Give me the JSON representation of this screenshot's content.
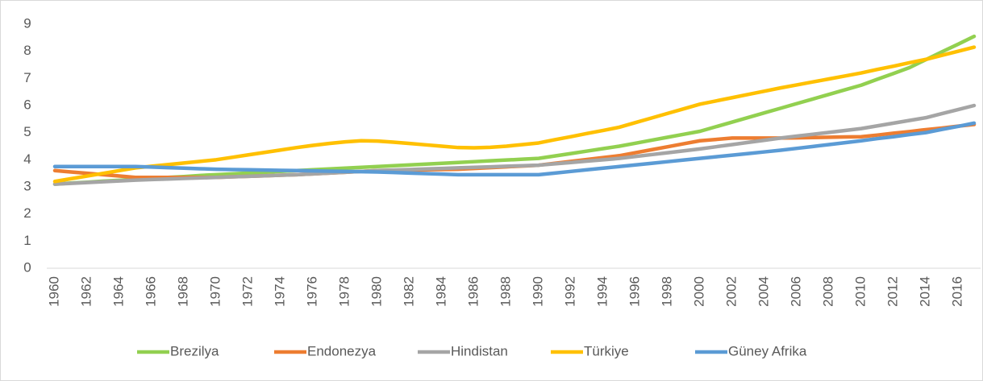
{
  "chart_data": {
    "type": "line",
    "categories": [
      "1960",
      null,
      "1962",
      null,
      "1964",
      null,
      "1966",
      null,
      "1968",
      null,
      "1970",
      null,
      "1972",
      null,
      "1974",
      null,
      "1976",
      null,
      "1978",
      null,
      "1980",
      null,
      "1982",
      null,
      "1984",
      null,
      "1986",
      null,
      "1988",
      null,
      "1990",
      null,
      "1992",
      null,
      "1994",
      null,
      "1996",
      null,
      "1998",
      null,
      "2000",
      null,
      "2002",
      null,
      "2004",
      null,
      "2006",
      null,
      "2008",
      null,
      "2010",
      null,
      "2012",
      null,
      "2014",
      null,
      "2016",
      null
    ],
    "series": [
      {
        "name": "Brezilya",
        "color": "#92d050",
        "values": [
          3.1,
          3.14,
          3.17,
          3.21,
          3.24,
          3.28,
          3.31,
          3.35,
          3.38,
          3.42,
          3.45,
          3.48,
          3.51,
          3.54,
          3.57,
          3.6,
          3.63,
          3.66,
          3.69,
          3.72,
          3.75,
          3.78,
          3.81,
          3.84,
          3.87,
          3.9,
          3.93,
          3.96,
          3.99,
          4.02,
          4.05,
          4.14,
          4.23,
          4.32,
          4.41,
          4.5,
          4.61,
          4.72,
          4.83,
          4.94,
          5.05,
          5.22,
          5.39,
          5.56,
          5.73,
          5.9,
          6.07,
          6.24,
          6.41,
          6.58,
          6.75,
          6.97,
          7.18,
          7.4,
          7.69,
          7.98,
          8.26,
          8.55
        ]
      },
      {
        "name": "Endonezya",
        "color": "#ed7d31",
        "values": [
          3.6,
          3.55,
          3.5,
          3.45,
          3.4,
          3.35,
          3.35,
          3.35,
          3.35,
          3.35,
          3.35,
          3.37,
          3.39,
          3.41,
          3.43,
          3.45,
          3.48,
          3.51,
          3.54,
          3.57,
          3.6,
          3.61,
          3.62,
          3.63,
          3.64,
          3.65,
          3.68,
          3.71,
          3.74,
          3.77,
          3.8,
          3.87,
          3.94,
          4.01,
          4.08,
          4.15,
          4.26,
          4.37,
          4.48,
          4.59,
          4.7,
          4.75,
          4.8,
          4.8,
          4.8,
          4.8,
          4.81,
          4.82,
          4.83,
          4.84,
          4.85,
          4.91,
          4.98,
          5.04,
          5.11,
          5.17,
          5.24,
          5.3
        ]
      },
      {
        "name": "Hindistan",
        "color": "#a5a5a5",
        "values": [
          3.1,
          3.13,
          3.16,
          3.19,
          3.22,
          3.25,
          3.27,
          3.29,
          3.31,
          3.33,
          3.35,
          3.37,
          3.39,
          3.41,
          3.43,
          3.45,
          3.48,
          3.51,
          3.54,
          3.57,
          3.6,
          3.62,
          3.64,
          3.66,
          3.68,
          3.7,
          3.72,
          3.74,
          3.76,
          3.78,
          3.8,
          3.85,
          3.9,
          3.95,
          4.0,
          4.05,
          4.12,
          4.19,
          4.26,
          4.33,
          4.4,
          4.48,
          4.56,
          4.64,
          4.72,
          4.8,
          4.87,
          4.94,
          5.01,
          5.08,
          5.15,
          5.25,
          5.35,
          5.45,
          5.55,
          5.7,
          5.85,
          6.0
        ]
      },
      {
        "name": "Türkiye",
        "color": "#ffc000",
        "values": [
          3.2,
          3.3,
          3.4,
          3.5,
          3.6,
          3.7,
          3.76,
          3.82,
          3.88,
          3.94,
          4.0,
          4.09,
          4.18,
          4.27,
          4.36,
          4.45,
          4.53,
          4.6,
          4.66,
          4.7,
          4.69,
          4.65,
          4.6,
          4.55,
          4.5,
          4.45,
          4.44,
          4.46,
          4.5,
          4.56,
          4.62,
          4.74,
          4.85,
          4.97,
          5.08,
          5.2,
          5.37,
          5.54,
          5.71,
          5.88,
          6.05,
          6.17,
          6.29,
          6.41,
          6.53,
          6.65,
          6.76,
          6.87,
          6.98,
          7.09,
          7.2,
          7.33,
          7.45,
          7.58,
          7.7,
          7.85,
          8.0,
          8.15
        ]
      },
      {
        "name": "Güney Afrika",
        "color": "#5b9bd5",
        "values": [
          3.75,
          3.75,
          3.75,
          3.75,
          3.75,
          3.75,
          3.73,
          3.71,
          3.69,
          3.67,
          3.65,
          3.64,
          3.63,
          3.62,
          3.61,
          3.6,
          3.59,
          3.58,
          3.57,
          3.56,
          3.55,
          3.53,
          3.51,
          3.49,
          3.47,
          3.45,
          3.45,
          3.45,
          3.45,
          3.45,
          3.45,
          3.51,
          3.57,
          3.63,
          3.69,
          3.75,
          3.81,
          3.87,
          3.93,
          3.99,
          4.05,
          4.11,
          4.17,
          4.23,
          4.29,
          4.35,
          4.42,
          4.49,
          4.56,
          4.63,
          4.7,
          4.78,
          4.85,
          4.93,
          5.0,
          5.12,
          5.23,
          5.35
        ]
      }
    ],
    "ylim": [
      0,
      9
    ],
    "yticks": [
      0,
      1,
      2,
      3,
      4,
      5,
      6,
      7,
      8,
      9
    ],
    "grid": false,
    "legend": "bottom"
  }
}
